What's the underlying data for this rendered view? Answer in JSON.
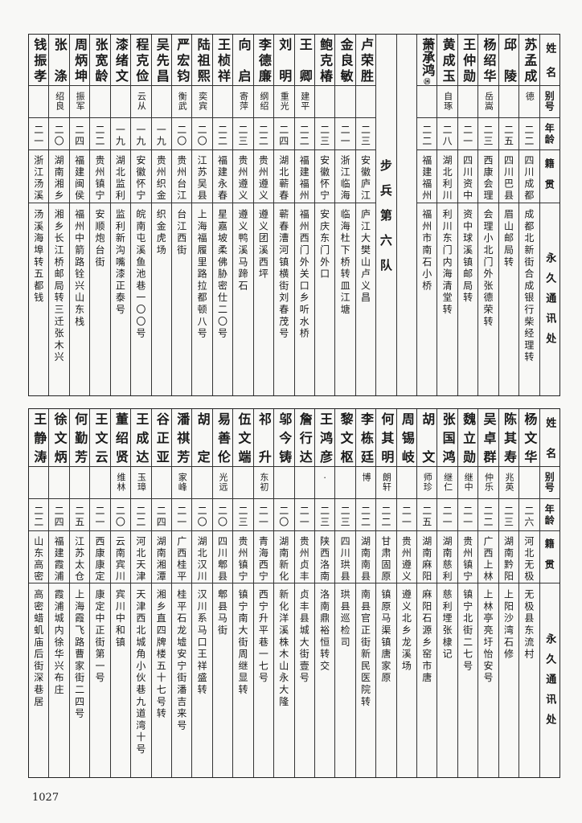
{
  "headers": {
    "name": "姓名",
    "alias": "别号",
    "age": "年龄",
    "native": "籍贯",
    "address": "永久通讯处"
  },
  "top_table": {
    "group1": [
      {
        "name": "苏孟成",
        "alias": "德",
        "age": "二二",
        "native": "四川成都",
        "address": "成都北新街合成银行柴经理转"
      },
      {
        "name": "邱陵",
        "alias": "",
        "age": "二五",
        "native": "四川巴县",
        "address": "眉山邮局转"
      },
      {
        "name": "杨绍华",
        "alias": "岳嵩",
        "age": "二三",
        "native": "西康会理",
        "address": "会理小北门外张德荣转"
      },
      {
        "name": "王仲勋",
        "alias": "",
        "age": "二一",
        "native": "四川资中",
        "address": "资中球溪镇邮局转"
      },
      {
        "name": "黄成玉",
        "alias": "自琢",
        "age": "二八",
        "native": "湖北利川",
        "address": "利川东门内海清堂转"
      },
      {
        "name": "萧承鸿",
        "note": "⑭",
        "alias": "",
        "age": "二二",
        "native": "福建福州",
        "address": "福州市南石小桥"
      }
    ],
    "section": "步兵第六队",
    "group2": [
      {
        "name": "卢荣胜",
        "alias": "",
        "age": "二三",
        "native": "安徽庐江",
        "address": "庐江大樊山卢义昌"
      },
      {
        "name": "金良敏",
        "alias": "",
        "age": "二一",
        "native": "浙江临海",
        "address": "临海杜下桥转皿江塘"
      },
      {
        "name": "鲍克椿",
        "alias": "",
        "age": "二三",
        "native": "安徽怀宁",
        "address": "安庆东门外口"
      },
      {
        "name": "王卿",
        "alias": "建平",
        "age": "二二",
        "native": "福建福州",
        "address": "福州西门外关口乡听水桥"
      },
      {
        "name": "刘明",
        "alias": "重光",
        "age": "二四",
        "native": "湖北蕲春",
        "address": "蕲春漕河镇横街刘春茂号"
      },
      {
        "name": "李德廉",
        "alias": "纲绍",
        "age": "二二",
        "native": "贵州遵义",
        "address": "遵义团溪西坪"
      },
      {
        "name": "向启",
        "alias": "寄萍",
        "age": "二三",
        "native": "贵州遵义",
        "address": "遵义鸭溪马蹄石"
      },
      {
        "name": "王桢祥",
        "alias": "",
        "age": "二二",
        "native": "福建永春",
        "address": "星嘉坡柔佛胁密仕二〇号"
      },
      {
        "name": "陆祖熙",
        "alias": "奕宾",
        "age": "二〇",
        "native": "江苏吴县",
        "address": "上海福履里路拉都顿八号"
      },
      {
        "name": "严宏钧",
        "alias": "衡武",
        "age": "二〇",
        "native": "贵州台江",
        "address": "台江西街"
      },
      {
        "name": "吴先昌",
        "alias": "",
        "age": "一九",
        "native": "贵州织金",
        "address": "织金虎场"
      },
      {
        "name": "程克俭",
        "alias": "云从",
        "age": "一九",
        "native": "安徽怀宁",
        "address": "皖南屯溪鱼池巷一〇〇号"
      },
      {
        "name": "漆绪文",
        "alias": "",
        "age": "一九",
        "native": "湖北监利",
        "address": "监利新沟嘴漆正泰号"
      },
      {
        "name": "张宽龄",
        "alias": "",
        "age": "二二",
        "native": "贵州镇宁",
        "address": "安顺炮台街"
      },
      {
        "name": "周炳坤",
        "alias": "振军",
        "age": "二四",
        "native": "福建闽侯",
        "address": "福州中箭路铨兴山东栈"
      },
      {
        "name": "张涤",
        "alias": "绍良",
        "age": "二〇",
        "native": "湖南湘乡",
        "address": "湘乡长江桥邮局转三迁张木兴"
      },
      {
        "name": "钱振孝",
        "alias": "",
        "age": "二一",
        "native": "浙江汤溪",
        "address": "汤溪海埠转五都钱"
      }
    ]
  },
  "bottom_table": {
    "rows": [
      {
        "name": "杨文华",
        "alias": "",
        "age": "二六",
        "native": "河北无极",
        "address": "无极县东流村"
      },
      {
        "name": "陈其寿",
        "alias": "兆英",
        "age": "二三",
        "native": "湖南黔阳",
        "address": "上阳沙湾石修"
      },
      {
        "name": "吴卓群",
        "alias": "仲乐",
        "age": "二二",
        "native": "广西上林",
        "address": "上林亭亮圩怡安号"
      },
      {
        "name": "魏立勋",
        "alias": "继中",
        "age": "二一",
        "native": "贵州镇宁",
        "address": "镇宁北街二七号"
      },
      {
        "name": "张国鸿",
        "alias": "继仁",
        "age": "二一",
        "native": "湖南慈利",
        "address": "慈利堙张棣记"
      },
      {
        "name": "胡文",
        "alias": "师珍",
        "age": "二五",
        "native": "湖南麻阳",
        "address": "麻阳石源乡窑市唐"
      },
      {
        "name": "周锡岐",
        "alias": "",
        "age": "二一",
        "native": "贵州遵义",
        "address": "遵义北乡龙溪场"
      },
      {
        "name": "何其明",
        "alias": "朗轩",
        "age": "二二",
        "native": "甘肃固原",
        "address": "镇原马渠镇唐家原"
      },
      {
        "name": "李栋廷",
        "alias": "博",
        "age": "二二",
        "native": "湖南南县",
        "address": "南县官正街新民医院转"
      },
      {
        "name": "黎文枢",
        "alias": "",
        "age": "二三",
        "native": "四川珙县",
        "address": "珙县巡检司"
      },
      {
        "name": "王鸿彦",
        "alias": "·",
        "age": "二三",
        "native": "陕西洛南",
        "address": "洛南鼎裕恒转交"
      },
      {
        "name": "詹行达",
        "alias": "",
        "age": "二一",
        "native": "贵州贞丰",
        "address": "贞丰县城大街壹号"
      },
      {
        "name": "邬今铸",
        "alias": "",
        "age": "二〇",
        "native": "湖南新化",
        "address": "新化洋溪株木山永大隆"
      },
      {
        "name": "祁升",
        "alias": "东初",
        "age": "二一",
        "native": "青海西宁",
        "address": "西宁升平巷一七号"
      },
      {
        "name": "伍文端",
        "alias": "",
        "age": "二三",
        "native": "贵州镇宁",
        "address": "镇宁南大街周继显转"
      },
      {
        "name": "易善伦",
        "alias": "光远",
        "age": "二〇",
        "native": "四川郫县",
        "address": "郫县马街"
      },
      {
        "name": "胡定",
        "alias": "",
        "age": "二〇",
        "native": "湖北汉川",
        "address": "汉川系马口王祥盛转"
      },
      {
        "name": "潘祺芳",
        "alias": "家峰",
        "age": "二一",
        "native": "广西桂平",
        "address": "桂平石龙墟安宁街潘吉来号"
      },
      {
        "name": "谷正亚",
        "alias": "",
        "age": "二四",
        "native": "湖南湘潭",
        "address": "湘乡直四牌楼五十七号转"
      },
      {
        "name": "王成达",
        "alias": "玉璋",
        "age": "二二",
        "native": "河北天津",
        "address": "天津西北城角小伙巷九道湾十号"
      },
      {
        "name": "董绍贤",
        "alias": "维林",
        "age": "二〇",
        "native": "云南宾川",
        "address": "宾川中和镇"
      },
      {
        "name": "王文云",
        "alias": "",
        "age": "二一",
        "native": "西康康定",
        "address": "康定中正街第一号"
      },
      {
        "name": "何勤芳",
        "alias": "",
        "age": "二五",
        "native": "江苏太仓",
        "address": "上海霞飞路曹家街二四号"
      },
      {
        "name": "徐文炳",
        "alias": "",
        "age": "二四",
        "native": "福建霞浦",
        "address": "霞浦城内徐华兴布庄"
      },
      {
        "name": "王静涛",
        "alias": "",
        "age": "二二",
        "native": "山东高密",
        "address": "高密蜡虮庙后街深巷居"
      }
    ]
  },
  "page_number": "1027"
}
